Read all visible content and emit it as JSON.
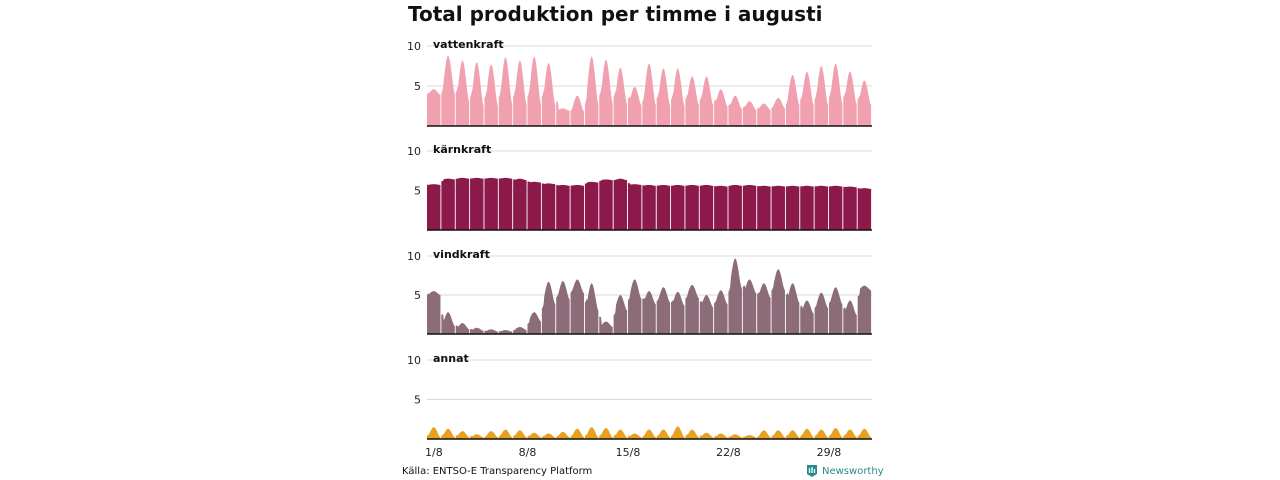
{
  "title": "Total produktion per timme i augusti",
  "source": "Källa: ENTSO-E Transparency Platform",
  "brand": "Newsworthy",
  "colors": {
    "brand": "#2a8a8a",
    "grid": "#d9d9d9",
    "baseline": "#111111"
  },
  "chart_data": {
    "type": "area",
    "title": "Total produktion per timme i augusti",
    "x_ticks": [
      "1/8",
      "8/8",
      "15/8",
      "22/8",
      "29/8"
    ],
    "x_tick_days": [
      1,
      8,
      15,
      22,
      29
    ],
    "x_range_days": [
      1,
      32
    ],
    "y_ticks": [
      5,
      10
    ],
    "ylim": [
      0,
      10
    ],
    "grid": true,
    "series": [
      {
        "name": "vattenkraft",
        "color": "#f0a0ae",
        "daily_peak": [
          4.6,
          8.8,
          8.2,
          8.0,
          7.7,
          8.6,
          8.2,
          8.7,
          7.9,
          2.2,
          3.8,
          8.7,
          8.3,
          7.3,
          4.9,
          7.8,
          7.2,
          7.2,
          6.2,
          6.2,
          4.6,
          3.8,
          3.1,
          2.8,
          3.5,
          6.4,
          6.8,
          7.5,
          7.8,
          6.8,
          5.7
        ],
        "daily_low": [
          3.9,
          4.0,
          3.0,
          2.5,
          2.5,
          2.7,
          2.6,
          2.7,
          2.6,
          1.9,
          1.8,
          2.7,
          2.8,
          2.7,
          2.6,
          2.6,
          2.5,
          2.5,
          2.6,
          2.6,
          2.4,
          2.1,
          2.0,
          2.0,
          2.2,
          2.6,
          2.6,
          2.6,
          2.8,
          2.7,
          2.6
        ]
      },
      {
        "name": "kärnkraft",
        "color": "#8b1a4a",
        "daily_peak": [
          5.8,
          6.5,
          6.6,
          6.6,
          6.6,
          6.6,
          6.5,
          6.1,
          5.9,
          5.7,
          5.7,
          6.1,
          6.4,
          6.5,
          5.8,
          5.7,
          5.7,
          5.7,
          5.7,
          5.7,
          5.6,
          5.7,
          5.7,
          5.6,
          5.6,
          5.6,
          5.6,
          5.6,
          5.6,
          5.5,
          5.3
        ],
        "daily_low": [
          5.7,
          6.4,
          6.5,
          6.5,
          6.5,
          6.5,
          6.3,
          6.0,
          5.8,
          5.6,
          5.6,
          6.0,
          6.3,
          6.3,
          5.7,
          5.6,
          5.6,
          5.6,
          5.6,
          5.6,
          5.5,
          5.6,
          5.6,
          5.5,
          5.5,
          5.5,
          5.5,
          5.5,
          5.5,
          5.4,
          5.2
        ]
      },
      {
        "name": "vindkraft",
        "color": "#8c6c78",
        "daily_peak": [
          5.5,
          2.8,
          1.4,
          0.8,
          0.6,
          0.5,
          0.9,
          2.8,
          6.7,
          6.8,
          7.0,
          6.5,
          1.6,
          5.0,
          7.0,
          5.5,
          6.0,
          5.4,
          6.3,
          5.0,
          5.6,
          9.7,
          7.0,
          6.5,
          8.3,
          6.5,
          4.3,
          5.3,
          6.0,
          4.3,
          6.2
        ],
        "daily_low": [
          5.0,
          1.0,
          0.6,
          0.4,
          0.3,
          0.3,
          0.5,
          1.6,
          3.8,
          4.4,
          5.2,
          3.0,
          0.9,
          3.0,
          4.5,
          3.8,
          4.0,
          3.6,
          4.6,
          3.4,
          3.8,
          5.8,
          5.2,
          4.6,
          5.6,
          4.0,
          2.6,
          3.3,
          3.8,
          2.4,
          5.6
        ]
      },
      {
        "name": "annat",
        "color": "#e8a020",
        "daily_peak": [
          1.5,
          1.3,
          1.0,
          0.6,
          1.0,
          1.2,
          1.1,
          0.8,
          0.7,
          0.9,
          1.3,
          1.5,
          1.4,
          1.2,
          0.7,
          1.2,
          1.2,
          1.6,
          1.2,
          0.8,
          0.7,
          0.6,
          0.5,
          1.1,
          1.1,
          1.1,
          1.3,
          1.2,
          1.4,
          1.2,
          1.3
        ],
        "daily_low": [
          0.2,
          0.2,
          0.2,
          0.2,
          0.2,
          0.2,
          0.2,
          0.2,
          0.2,
          0.2,
          0.2,
          0.2,
          0.2,
          0.2,
          0.2,
          0.2,
          0.2,
          0.2,
          0.2,
          0.2,
          0.2,
          0.2,
          0.2,
          0.2,
          0.2,
          0.2,
          0.2,
          0.2,
          0.2,
          0.2,
          0.2
        ]
      }
    ]
  }
}
